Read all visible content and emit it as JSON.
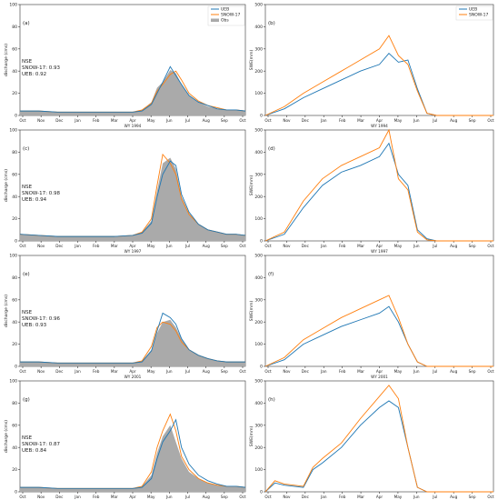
{
  "chart_data": [
    {
      "panel": "(a)",
      "type": "area",
      "xlabel": "WY 1994",
      "ylabel": "discharge (cms)",
      "ylim": [
        0,
        100
      ],
      "yticks": [
        0,
        20,
        40,
        60,
        80,
        100
      ],
      "months": [
        "Oct",
        "Nov",
        "Dec",
        "Jan",
        "Feb",
        "Mar",
        "Apr",
        "May",
        "Jun",
        "Jul",
        "Aug",
        "Sep",
        "Oct"
      ],
      "legend": [
        "UEB",
        "SNOW-17",
        "Obs"
      ],
      "nse": {
        "title": "NSE",
        "snow17": "SNOW-17: 0.93",
        "ueb": "UEB: 0.92"
      },
      "series": [
        {
          "name": "Obs",
          "color": "#aaaaaa",
          "x": [
            0,
            1,
            2,
            3,
            4,
            5,
            6,
            6.5,
            7,
            7.3,
            7.6,
            8,
            8.3,
            8.6,
            9,
            9.5,
            10,
            10.5,
            11,
            11.5,
            12
          ],
          "values": [
            4,
            4,
            3,
            3,
            3,
            3,
            3,
            5,
            12,
            25,
            30,
            41,
            38,
            28,
            18,
            12,
            8,
            6,
            5,
            5,
            4
          ]
        },
        {
          "name": "SNOW-17",
          "color": "#ff7f0e",
          "x": [
            0,
            1,
            2,
            3,
            4,
            5,
            6,
            6.5,
            7,
            7.3,
            7.6,
            8,
            8.3,
            8.6,
            9,
            9.5,
            10,
            10.5,
            11,
            11.5,
            12
          ],
          "values": [
            4,
            4,
            3,
            3,
            3,
            3,
            3,
            5,
            11,
            22,
            28,
            37,
            40,
            32,
            20,
            13,
            9,
            7,
            5,
            5,
            4
          ]
        },
        {
          "name": "UEB",
          "color": "#1f77b4",
          "x": [
            0,
            1,
            2,
            3,
            4,
            5,
            6,
            6.5,
            7,
            7.3,
            7.6,
            8,
            8.3,
            8.6,
            9,
            9.5,
            10,
            10.5,
            11,
            11.5,
            12
          ],
          "values": [
            4,
            4,
            3,
            3,
            3,
            3,
            3,
            4,
            10,
            20,
            30,
            44,
            36,
            28,
            18,
            12,
            9,
            6,
            5,
            5,
            4
          ]
        }
      ]
    },
    {
      "panel": "(b)",
      "type": "line",
      "xlabel": "WY 1994",
      "ylabel": "SWE(mm)",
      "ylim": [
        0,
        500
      ],
      "yticks": [
        0,
        100,
        200,
        300,
        400,
        500
      ],
      "months": [
        "Oct",
        "Nov",
        "Dec",
        "Jan",
        "Feb",
        "Mar",
        "Apr",
        "May",
        "Jun",
        "Jul",
        "Aug",
        "Sep",
        "Oct"
      ],
      "legend": [
        "UEB",
        "SNOW-17"
      ],
      "series": [
        {
          "name": "UEB",
          "color": "#1f77b4",
          "x": [
            0,
            1,
            2,
            3,
            4,
            5,
            6,
            6.5,
            7,
            7.5,
            8,
            8.5,
            9,
            10,
            11,
            12
          ],
          "values": [
            0,
            30,
            80,
            120,
            160,
            200,
            230,
            280,
            240,
            250,
            120,
            10,
            0,
            0,
            0,
            0
          ]
        },
        {
          "name": "SNOW-17",
          "color": "#ff7f0e",
          "x": [
            0,
            1,
            2,
            3,
            4,
            5,
            6,
            6.5,
            7,
            7.5,
            8,
            8.5,
            9,
            10,
            11,
            12
          ],
          "values": [
            0,
            40,
            100,
            150,
            200,
            250,
            300,
            360,
            270,
            230,
            110,
            10,
            0,
            0,
            0,
            0
          ]
        }
      ]
    },
    {
      "panel": "(c)",
      "type": "area",
      "xlabel": "WY 1997",
      "ylabel": "discharge (cms)",
      "ylim": [
        0,
        100
      ],
      "yticks": [
        0,
        20,
        40,
        60,
        80,
        100
      ],
      "months": [
        "Oct",
        "Nov",
        "Dec",
        "Jan",
        "Feb",
        "Mar",
        "Apr",
        "May",
        "Jun",
        "Jul",
        "Aug",
        "Sep",
        "Oct"
      ],
      "nse": {
        "title": "NSE",
        "snow17": "SNOW-17: 0.98",
        "ueb": "UEB: 0.94"
      },
      "series": [
        {
          "name": "Obs",
          "color": "#aaaaaa",
          "x": [
            0,
            1,
            2,
            3,
            4,
            5,
            6,
            6.5,
            7,
            7.3,
            7.6,
            8,
            8.3,
            8.6,
            9,
            9.5,
            10,
            10.5,
            11,
            11.5,
            12
          ],
          "values": [
            6,
            5,
            4,
            4,
            4,
            4,
            5,
            8,
            18,
            45,
            70,
            75,
            65,
            40,
            25,
            15,
            10,
            8,
            6,
            6,
            5
          ]
        },
        {
          "name": "SNOW-17",
          "color": "#ff7f0e",
          "x": [
            0,
            1,
            2,
            3,
            4,
            5,
            6,
            6.5,
            7,
            7.3,
            7.6,
            8,
            8.3,
            8.6,
            9,
            9.5,
            10,
            10.5,
            11,
            11.5,
            12
          ],
          "values": [
            6,
            5,
            4,
            4,
            4,
            4,
            5,
            8,
            20,
            50,
            78,
            70,
            60,
            38,
            24,
            15,
            10,
            8,
            6,
            6,
            5
          ]
        },
        {
          "name": "UEB",
          "color": "#1f77b4",
          "x": [
            0,
            1,
            2,
            3,
            4,
            5,
            6,
            6.5,
            7,
            7.3,
            7.6,
            8,
            8.3,
            8.6,
            9,
            9.5,
            10,
            10.5,
            11,
            11.5,
            12
          ],
          "values": [
            6,
            5,
            4,
            4,
            4,
            4,
            5,
            7,
            16,
            40,
            60,
            72,
            68,
            42,
            26,
            15,
            10,
            8,
            6,
            6,
            5
          ]
        }
      ]
    },
    {
      "panel": "(d)",
      "type": "line",
      "xlabel": "WY 1997",
      "ylabel": "SWE(mm)",
      "ylim": [
        0,
        500
      ],
      "yticks": [
        0,
        100,
        200,
        300,
        400,
        500
      ],
      "months": [
        "Oct",
        "Nov",
        "Dec",
        "Jan",
        "Feb",
        "Mar",
        "Apr",
        "May",
        "Jun",
        "Jul",
        "Aug",
        "Sep",
        "Oct"
      ],
      "series": [
        {
          "name": "UEB",
          "color": "#1f77b4",
          "x": [
            0,
            1,
            2,
            3,
            4,
            5,
            6,
            6.5,
            7,
            7.5,
            8,
            8.5,
            9,
            10,
            11,
            12
          ],
          "values": [
            0,
            30,
            150,
            250,
            310,
            340,
            380,
            440,
            300,
            250,
            50,
            10,
            0,
            0,
            0,
            0
          ]
        },
        {
          "name": "SNOW-17",
          "color": "#ff7f0e",
          "x": [
            0,
            1,
            2,
            3,
            4,
            5,
            6,
            6.5,
            7,
            7.5,
            8,
            8.5,
            9,
            10,
            11,
            12
          ],
          "values": [
            0,
            40,
            180,
            280,
            340,
            380,
            420,
            500,
            280,
            230,
            40,
            5,
            0,
            0,
            0,
            0
          ]
        }
      ]
    },
    {
      "panel": "(e)",
      "type": "area",
      "xlabel": "WY 2001",
      "ylabel": "discharge (cms)",
      "ylim": [
        0,
        100
      ],
      "yticks": [
        0,
        20,
        40,
        60,
        80,
        100
      ],
      "months": [
        "Oct",
        "Nov",
        "Dec",
        "Jan",
        "Feb",
        "Mar",
        "Apr",
        "May",
        "Jun",
        "Jul",
        "Aug",
        "Sep",
        "Oct"
      ],
      "nse": {
        "title": "NSE",
        "snow17": "SNOW-17: 0.96",
        "ueb": "UEB: 0.93"
      },
      "series": [
        {
          "name": "Obs",
          "color": "#aaaaaa",
          "x": [
            0,
            1,
            2,
            3,
            4,
            5,
            6,
            6.5,
            7,
            7.3,
            7.6,
            8,
            8.3,
            8.6,
            9,
            9.5,
            10,
            10.5,
            11,
            11.5,
            12
          ],
          "values": [
            4,
            4,
            3,
            3,
            3,
            3,
            3,
            5,
            15,
            30,
            40,
            42,
            35,
            25,
            15,
            10,
            7,
            5,
            4,
            4,
            4
          ]
        },
        {
          "name": "SNOW-17",
          "color": "#ff7f0e",
          "x": [
            0,
            1,
            2,
            3,
            4,
            5,
            6,
            6.5,
            7,
            7.3,
            7.6,
            8,
            8.3,
            8.6,
            9,
            9.5,
            10,
            10.5,
            11,
            11.5,
            12
          ],
          "values": [
            4,
            4,
            3,
            3,
            3,
            3,
            3,
            5,
            18,
            35,
            40,
            38,
            32,
            22,
            15,
            10,
            7,
            5,
            4,
            4,
            4
          ]
        },
        {
          "name": "UEB",
          "color": "#1f77b4",
          "x": [
            0,
            1,
            2,
            3,
            4,
            5,
            6,
            6.5,
            7,
            7.3,
            7.6,
            8,
            8.3,
            8.6,
            9,
            9.5,
            10,
            10.5,
            11,
            11.5,
            12
          ],
          "values": [
            4,
            4,
            3,
            3,
            3,
            3,
            3,
            4,
            14,
            32,
            48,
            44,
            38,
            25,
            15,
            10,
            7,
            5,
            4,
            4,
            4
          ]
        }
      ]
    },
    {
      "panel": "(f)",
      "type": "line",
      "xlabel": "WY 2001",
      "ylabel": "SWE(mm)",
      "ylim": [
        0,
        500
      ],
      "yticks": [
        0,
        100,
        200,
        300,
        400,
        500
      ],
      "months": [
        "Oct",
        "Nov",
        "Dec",
        "Jan",
        "Feb",
        "Mar",
        "Apr",
        "May",
        "Jun",
        "Jul",
        "Aug",
        "Sep",
        "Oct"
      ],
      "series": [
        {
          "name": "UEB",
          "color": "#1f77b4",
          "x": [
            0,
            1,
            2,
            3,
            4,
            5,
            6,
            6.5,
            7,
            7.5,
            8,
            8.5,
            9,
            10,
            11,
            12
          ],
          "values": [
            0,
            30,
            100,
            140,
            180,
            210,
            240,
            270,
            200,
            100,
            20,
            0,
            0,
            0,
            0,
            0
          ]
        },
        {
          "name": "SNOW-17",
          "color": "#ff7f0e",
          "x": [
            0,
            1,
            2,
            3,
            4,
            5,
            6,
            6.5,
            7,
            7.5,
            8,
            8.5,
            9,
            10,
            11,
            12
          ],
          "values": [
            0,
            40,
            120,
            170,
            220,
            260,
            300,
            320,
            220,
            100,
            20,
            0,
            0,
            0,
            0,
            0
          ]
        }
      ]
    },
    {
      "panel": "(g)",
      "type": "area",
      "xlabel": "WY 2008",
      "ylabel": "discharge (cms)",
      "ylim": [
        0,
        100
      ],
      "yticks": [
        0,
        20,
        40,
        60,
        80,
        100
      ],
      "months": [
        "Oct",
        "Nov",
        "Dec",
        "Jan",
        "Feb",
        "Mar",
        "Apr",
        "May",
        "Jun",
        "Jul",
        "Aug",
        "Sep",
        "Oct"
      ],
      "nse": {
        "title": "NSE",
        "snow17": "SNOW-17: 0.87",
        "ueb": "UEB: 0.84"
      },
      "series": [
        {
          "name": "Obs",
          "color": "#aaaaaa",
          "x": [
            0,
            1,
            2,
            3,
            4,
            5,
            6,
            6.5,
            7,
            7.3,
            7.6,
            8,
            8.3,
            8.6,
            9,
            9.5,
            10,
            10.5,
            11,
            11.5,
            12
          ],
          "values": [
            4,
            4,
            3,
            3,
            3,
            3,
            3,
            5,
            15,
            35,
            50,
            60,
            45,
            30,
            18,
            12,
            8,
            6,
            5,
            5,
            4
          ]
        },
        {
          "name": "SNOW-17",
          "color": "#ff7f0e",
          "x": [
            0,
            1,
            2,
            3,
            4,
            5,
            6,
            6.5,
            7,
            7.3,
            7.6,
            8,
            8.3,
            8.6,
            9,
            9.5,
            10,
            10.5,
            11,
            11.5,
            12
          ],
          "values": [
            4,
            4,
            3,
            3,
            3,
            3,
            3,
            5,
            18,
            40,
            55,
            70,
            55,
            32,
            20,
            12,
            8,
            6,
            5,
            5,
            4
          ]
        },
        {
          "name": "UEB",
          "color": "#1f77b4",
          "x": [
            0,
            1,
            2,
            3,
            4,
            5,
            6,
            6.5,
            7,
            7.3,
            7.6,
            8,
            8.3,
            8.6,
            9,
            9.5,
            10,
            10.5,
            11,
            11.5,
            12
          ],
          "values": [
            4,
            4,
            3,
            3,
            3,
            3,
            3,
            4,
            12,
            30,
            45,
            55,
            65,
            40,
            25,
            15,
            10,
            7,
            5,
            5,
            4
          ]
        }
      ]
    },
    {
      "panel": "(h)",
      "type": "line",
      "xlabel": "WY 2008",
      "ylabel": "SWE(mm)",
      "ylim": [
        0,
        500
      ],
      "yticks": [
        0,
        100,
        200,
        300,
        400,
        500
      ],
      "months": [
        "Oct",
        "Nov",
        "Dec",
        "Jan",
        "Feb",
        "Mar",
        "Apr",
        "May",
        "Jun",
        "Jul",
        "Aug",
        "Sep",
        "Oct"
      ],
      "series": [
        {
          "name": "UEB",
          "color": "#1f77b4",
          "x": [
            0,
            0.5,
            1,
            2,
            2.5,
            3,
            4,
            5,
            6,
            6.5,
            7,
            7.5,
            8,
            8.5,
            9,
            10,
            11,
            12
          ],
          "values": [
            0,
            40,
            30,
            20,
            100,
            130,
            200,
            300,
            380,
            410,
            380,
            200,
            20,
            0,
            0,
            0,
            0,
            0
          ]
        },
        {
          "name": "SNOW-17",
          "color": "#ff7f0e",
          "x": [
            0,
            0.5,
            1,
            2,
            2.5,
            3,
            4,
            5,
            6,
            6.5,
            7,
            7.5,
            8,
            8.5,
            9,
            10,
            11,
            12
          ],
          "values": [
            0,
            50,
            35,
            25,
            110,
            150,
            220,
            330,
            430,
            480,
            420,
            200,
            20,
            0,
            0,
            0,
            0,
            0
          ]
        }
      ]
    }
  ]
}
